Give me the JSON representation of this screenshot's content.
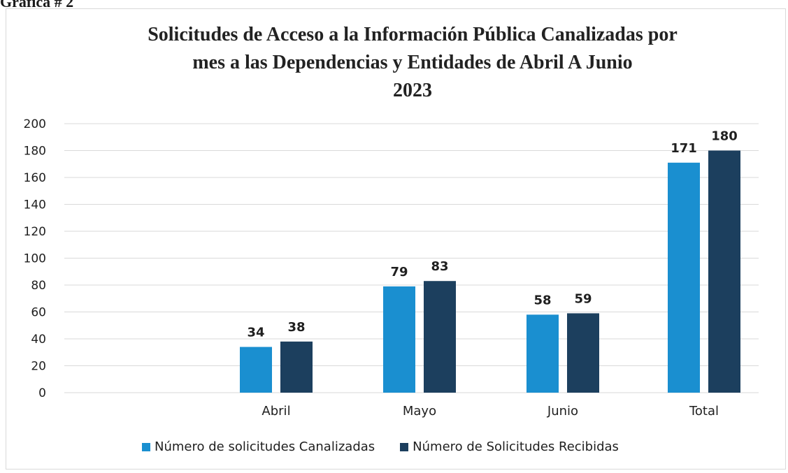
{
  "figure_label": "Gráfica # 2",
  "colors": {
    "canalizadas": "#1a8fd0",
    "recibidas": "#1c3f5e",
    "grid": "#d9d9d9",
    "text": "#1f1f1f"
  },
  "chart_data": {
    "type": "bar",
    "title": [
      "Solicitudes de Acceso a la Información Pública Canalizadas  por",
      "mes a las Dependencias y Entidades de Abril A Junio",
      "2023"
    ],
    "categories": [
      "Abril",
      "Mayo",
      "Junio",
      "Total"
    ],
    "series": [
      {
        "name": "Número de solicitudes Canalizadas",
        "values": [
          34,
          79,
          58,
          171
        ]
      },
      {
        "name": "Número de Solicitudes Recibidas",
        "values": [
          38,
          83,
          59,
          180
        ]
      }
    ],
    "ylim": [
      0,
      200
    ],
    "yticks": [
      0,
      20,
      40,
      60,
      80,
      100,
      120,
      140,
      160,
      180,
      200
    ],
    "grid": true,
    "legend": "bottom"
  }
}
